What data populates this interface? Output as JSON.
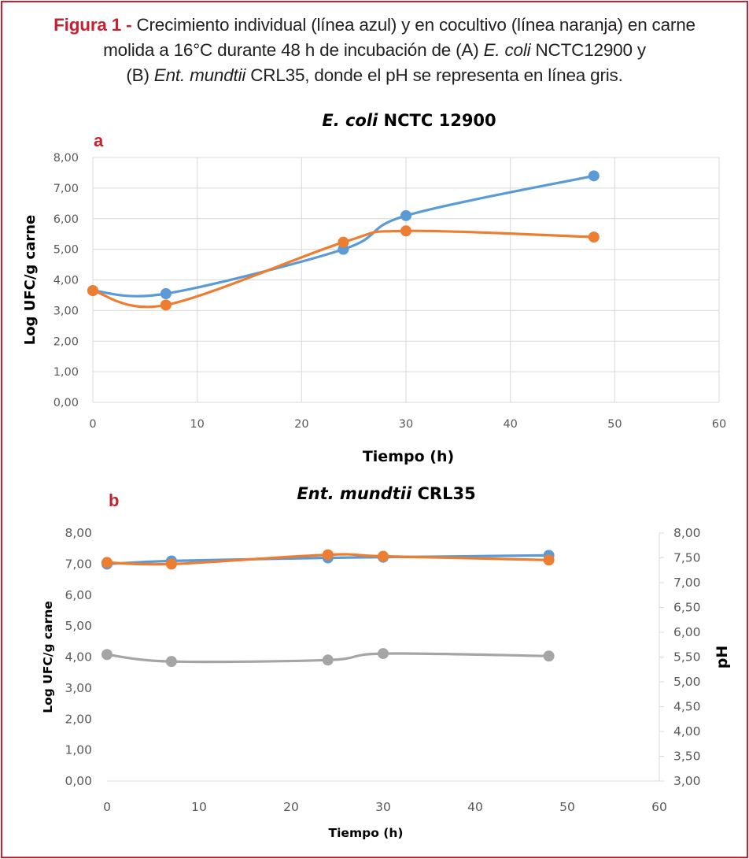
{
  "caption": {
    "label": "Figura 1 -",
    "line1": "Crecimiento individual (línea azul) y en cocultivo (línea naranja) en carne",
    "line2_pre": "molida a 16°C durante 48 h de incubación de (A) ",
    "line2_em": "E. coli",
    "line2_post": " NCTC12900 y",
    "line3_pre": "(B) ",
    "line3_em": "Ent. mundtii",
    "line3_post": " CRL35, donde el pH se representa en línea gris."
  },
  "colors": {
    "blue": "#5b9bd5",
    "orange": "#ed7d31",
    "gray": "#a5a5a5",
    "panel_label": "#c8202f"
  },
  "chart_data": [
    {
      "type": "line",
      "panel_label": "a",
      "title_em": "E. coli",
      "title_rest": " NCTC 12900",
      "xlabel": "Tiempo (h)",
      "ylabel": "Log UFC/g carne",
      "xlim": [
        0,
        60
      ],
      "ylim": [
        0,
        8
      ],
      "x_ticks": [
        "0",
        "10",
        "20",
        "30",
        "40",
        "50",
        "60"
      ],
      "y_ticks": [
        "0,00",
        "1,00",
        "2,00",
        "3,00",
        "4,00",
        "5,00",
        "6,00",
        "7,00",
        "8,00"
      ],
      "grid": true,
      "series": [
        {
          "color": "#5b9bd5",
          "x": [
            0,
            7,
            24,
            30,
            48
          ],
          "y": [
            3.65,
            3.55,
            5.0,
            6.1,
            7.4
          ]
        },
        {
          "color": "#ed7d31",
          "x": [
            0,
            7,
            24,
            30,
            48
          ],
          "y": [
            3.65,
            3.18,
            5.23,
            5.6,
            5.4
          ]
        }
      ]
    },
    {
      "type": "line",
      "panel_label": "b",
      "title_em": "Ent. mundtii",
      "title_rest": " CRL35",
      "xlabel": "Tiempo (h)",
      "ylabel": "Log UFC/g carne",
      "y2label": "pH",
      "xlim": [
        0,
        60
      ],
      "ylim": [
        0,
        8
      ],
      "y2lim": [
        3,
        8
      ],
      "x_ticks": [
        "0",
        "10",
        "20",
        "30",
        "40",
        "50",
        "60"
      ],
      "y_ticks": [
        "0,00",
        "1,00",
        "2,00",
        "3,00",
        "4,00",
        "5,00",
        "6,00",
        "7,00",
        "8,00"
      ],
      "y2_ticks": [
        "3,00",
        "3,50",
        "4,00",
        "4,50",
        "5,00",
        "5,50",
        "6,00",
        "6,50",
        "7,00",
        "7,50",
        "8,00"
      ],
      "grid": false,
      "series": [
        {
          "color": "#5b9bd5",
          "axis": "left",
          "x": [
            0,
            7,
            24,
            30,
            48
          ],
          "y": [
            7.0,
            7.1,
            7.2,
            7.22,
            7.28
          ]
        },
        {
          "color": "#ed7d31",
          "axis": "left",
          "x": [
            0,
            7,
            24,
            30,
            48
          ],
          "y": [
            7.05,
            7.0,
            7.3,
            7.25,
            7.13
          ]
        },
        {
          "color": "#a5a5a5",
          "axis": "right",
          "x": [
            0,
            7,
            24,
            30,
            48
          ],
          "y": [
            5.55,
            5.41,
            5.44,
            5.57,
            5.52
          ]
        }
      ]
    }
  ]
}
